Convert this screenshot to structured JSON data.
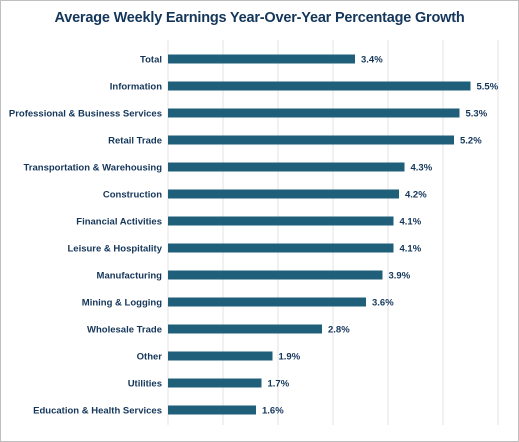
{
  "chart_data": {
    "type": "bar",
    "orientation": "horizontal",
    "title": "Average Weekly Earnings Year-Over-Year Percentage Growth",
    "xlabel": "",
    "ylabel": "",
    "xlim": [
      0,
      6.5
    ],
    "grid": true,
    "bar_color": "#1f5f7a",
    "categories": [
      "Total",
      "Information",
      "Professional & Business Services",
      "Retail Trade",
      "Transportation & Warehousing",
      "Construction",
      "Financial Activities",
      "Leisure & Hospitality",
      "Manufacturing",
      "Mining & Logging",
      "Wholesale Trade",
      "Other",
      "Utilities",
      "Education & Health Services"
    ],
    "values": [
      3.4,
      5.5,
      5.3,
      5.2,
      4.3,
      4.2,
      4.1,
      4.1,
      3.9,
      3.6,
      2.8,
      1.9,
      1.7,
      1.6
    ],
    "data_labels": [
      "3.4%",
      "5.5%",
      "5.3%",
      "5.2%",
      "4.3%",
      "4.2%",
      "4.1%",
      "4.1%",
      "3.9%",
      "3.6%",
      "2.8%",
      "1.9%",
      "1.7%",
      "1.6%"
    ]
  }
}
